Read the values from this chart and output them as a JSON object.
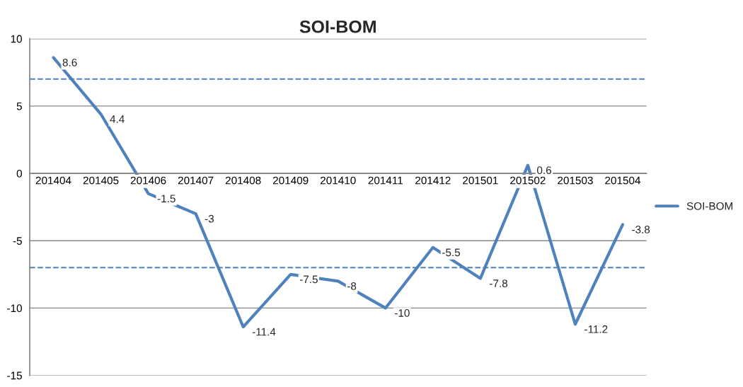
{
  "chart_data": {
    "type": "line",
    "title": "SOI-BOM",
    "categories": [
      "201404",
      "201405",
      "201406",
      "201407",
      "201408",
      "201409",
      "201410",
      "201411",
      "201412",
      "201501",
      "201502",
      "201503",
      "201504"
    ],
    "series": [
      {
        "name": "SOI-BOM",
        "color": "#4f81bd",
        "values": [
          8.6,
          4.4,
          -1.5,
          -3,
          -11.4,
          -7.5,
          -8,
          -10,
          -5.5,
          -7.8,
          0.6,
          -11.2,
          -3.8
        ]
      }
    ],
    "ylim": [
      -15,
      10
    ],
    "yticks": [
      -15,
      -10,
      -5,
      0,
      5,
      10
    ],
    "ref_lines": [
      {
        "axis": "y",
        "value": 7,
        "color": "#4f81bd",
        "line_style": "dashed"
      },
      {
        "axis": "y",
        "value": -7,
        "color": "#4f81bd",
        "line_style": "dashed"
      }
    ],
    "data_labels": true,
    "grid": "y",
    "legend": "right",
    "marker": "none",
    "line_style": "solid"
  }
}
